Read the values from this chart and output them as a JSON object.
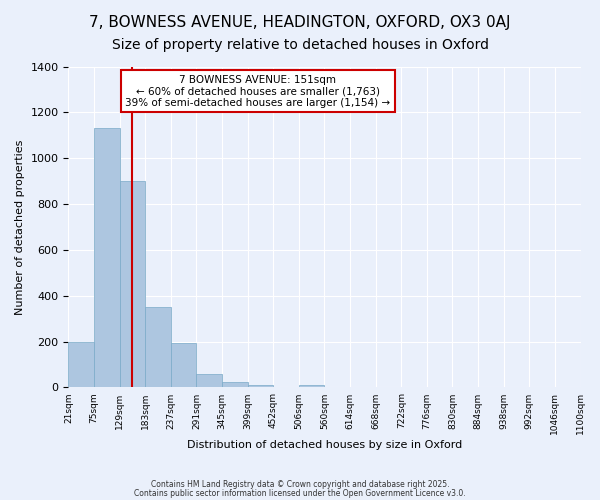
{
  "title1": "7, BOWNESS AVENUE, HEADINGTON, OXFORD, OX3 0AJ",
  "title2": "Size of property relative to detached houses in Oxford",
  "xlabel": "Distribution of detached houses by size in Oxford",
  "ylabel": "Number of detached properties",
  "bar_values": [
    200,
    1130,
    900,
    350,
    195,
    60,
    25,
    10,
    0,
    10,
    0,
    0,
    0,
    0,
    0,
    0,
    0,
    0,
    0,
    0
  ],
  "bin_edges": [
    "21sqm",
    "75sqm",
    "129sqm",
    "183sqm",
    "237sqm",
    "291sqm",
    "345sqm",
    "399sqm",
    "452sqm",
    "506sqm",
    "560sqm",
    "614sqm",
    "668sqm",
    "722sqm",
    "776sqm",
    "830sqm",
    "884sqm",
    "938sqm",
    "992sqm",
    "1046sqm",
    "1100sqm"
  ],
  "bar_color": "#adc6e0",
  "bar_edge_color": "#7aaac8",
  "vline_position": 2.5,
  "vline_color": "#cc0000",
  "annotation_title": "7 BOWNESS AVENUE: 151sqm",
  "annotation_line1": "← 60% of detached houses are smaller (1,763)",
  "annotation_line2": "39% of semi-detached houses are larger (1,154) →",
  "annotation_box_color": "#ffffff",
  "annotation_box_edge": "#cc0000",
  "ylim": [
    0,
    1400
  ],
  "yticks": [
    0,
    200,
    400,
    600,
    800,
    1000,
    1200,
    1400
  ],
  "background_color": "#eaf0fb",
  "footer1": "Contains HM Land Registry data © Crown copyright and database right 2025.",
  "footer2": "Contains public sector information licensed under the Open Government Licence v3.0.",
  "title_fontsize": 11,
  "subtitle_fontsize": 10
}
